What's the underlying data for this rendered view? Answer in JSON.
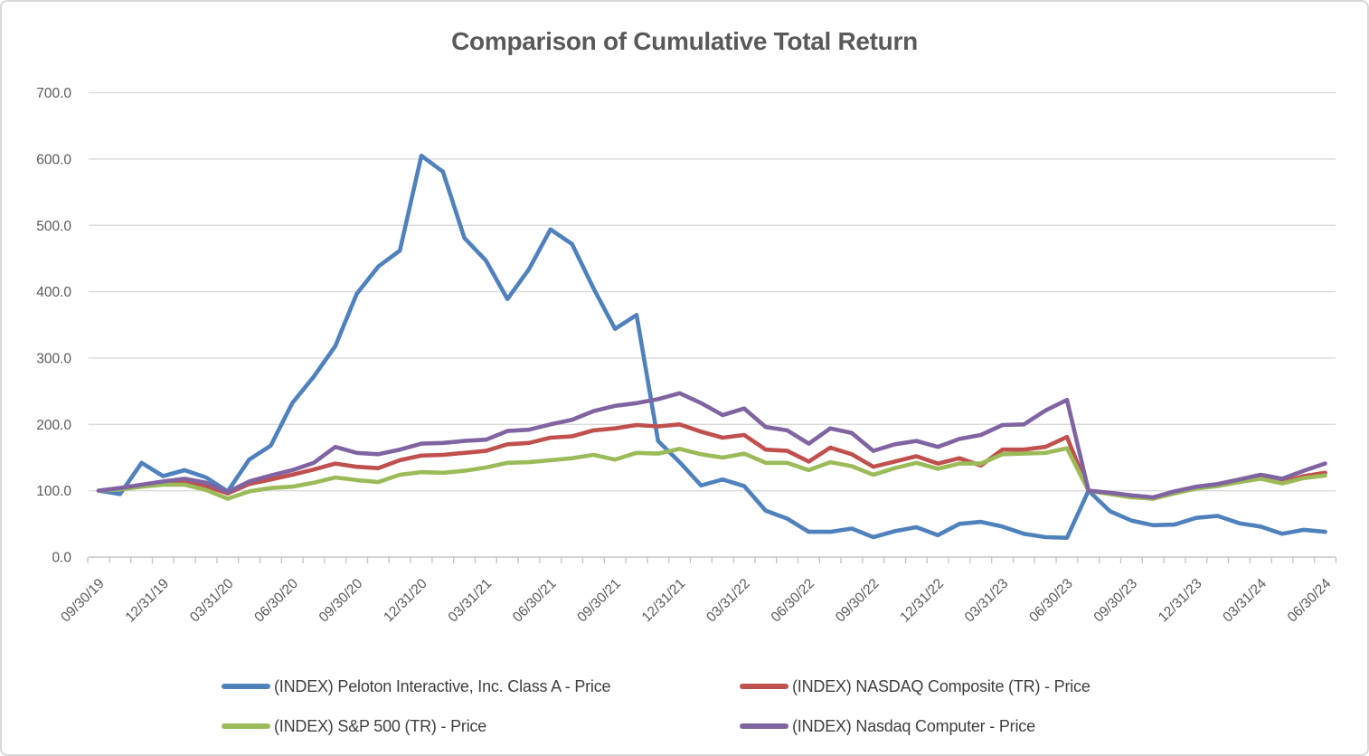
{
  "title": "Comparison of Cumulative Total Return",
  "chart_data": {
    "type": "line",
    "title": "Comparison of Cumulative Total Return",
    "grid": true,
    "legend_position": "bottom",
    "x_label_every": 3,
    "y_axis": {
      "min": 0,
      "max": 700,
      "step": 100
    },
    "y_tick_labels": [
      "0.0",
      "100.0",
      "200.0",
      "300.0",
      "400.0",
      "500.0",
      "600.0",
      "700.0"
    ],
    "x": [
      "09/30/19",
      "10/31/19",
      "11/30/19",
      "12/31/19",
      "01/31/20",
      "02/29/20",
      "03/31/20",
      "04/30/20",
      "05/31/20",
      "06/30/20",
      "07/31/20",
      "08/31/20",
      "09/30/20",
      "10/31/20",
      "11/30/20",
      "12/31/20",
      "01/31/21",
      "02/28/21",
      "03/31/21",
      "04/30/21",
      "05/31/21",
      "06/30/21",
      "07/31/21",
      "08/31/21",
      "09/30/21",
      "10/31/21",
      "11/30/21",
      "12/31/21",
      "01/31/22",
      "02/28/22",
      "03/31/22",
      "04/30/22",
      "05/31/22",
      "06/30/22",
      "07/31/22",
      "08/31/22",
      "09/30/22",
      "10/31/22",
      "11/30/22",
      "12/31/22",
      "01/31/23",
      "02/28/23",
      "03/31/23",
      "04/30/23",
      "05/31/23",
      "06/30/23",
      "07/31/23",
      "08/31/23",
      "09/30/23",
      "10/31/23",
      "11/30/23",
      "12/31/23",
      "01/31/24",
      "02/29/24",
      "03/31/24",
      "04/30/24",
      "05/31/24",
      "06/30/24"
    ],
    "series": [
      {
        "name": "(INDEX) Peloton Interactive, Inc. Class A - Price",
        "color": "#4F81BD",
        "values": [
          100,
          95,
          142,
          122,
          131,
          120,
          99,
          147,
          168,
          232,
          272,
          318,
          397,
          438,
          462,
          605,
          581,
          481,
          447,
          389,
          434,
          494,
          472,
          405,
          344,
          365,
          175,
          143,
          108,
          117,
          107,
          70,
          58,
          38,
          38,
          43,
          30,
          39,
          45,
          33,
          50,
          53,
          46,
          35,
          30,
          29,
          100,
          69,
          55,
          48,
          49,
          59,
          62,
          51,
          46,
          35,
          41,
          38
        ]
      },
      {
        "name": "(INDEX) NASDAQ Composite (TR) - Price",
        "color": "#C0504D",
        "values": [
          100,
          104,
          108,
          112,
          114,
          107,
          96,
          110,
          117,
          124,
          132,
          141,
          136,
          134,
          146,
          153,
          154,
          157,
          160,
          170,
          172,
          180,
          182,
          191,
          194,
          199,
          197,
          200,
          189,
          180,
          184,
          162,
          160,
          144,
          165,
          155,
          136,
          144,
          152,
          141,
          149,
          138,
          162,
          162,
          166,
          181,
          100,
          96,
          91,
          88,
          97,
          104,
          108,
          114,
          120,
          113,
          122,
          127
        ]
      },
      {
        "name": "(INDEX) S&P 500 (TR) - Price",
        "color": "#9BBB59",
        "values": [
          100,
          102,
          106,
          109,
          109,
          101,
          88,
          99,
          104,
          106,
          112,
          120,
          116,
          113,
          124,
          128,
          127,
          130,
          135,
          142,
          143,
          146,
          149,
          154,
          147,
          157,
          156,
          163,
          155,
          150,
          156,
          142,
          142,
          131,
          143,
          137,
          124,
          134,
          142,
          133,
          141,
          141,
          155,
          156,
          157,
          164,
          100,
          95,
          90,
          88,
          96,
          103,
          107,
          113,
          118,
          111,
          119,
          123
        ]
      },
      {
        "name": "(INDEX) Nasdaq Computer - Price",
        "color": "#8064A2",
        "values": [
          100,
          104,
          109,
          114,
          118,
          112,
          98,
          114,
          123,
          131,
          142,
          166,
          157,
          155,
          162,
          171,
          172,
          175,
          177,
          190,
          192,
          200,
          207,
          220,
          228,
          232,
          238,
          247,
          232,
          214,
          224,
          196,
          191,
          171,
          194,
          187,
          160,
          170,
          175,
          166,
          178,
          184,
          199,
          200,
          221,
          237,
          100,
          97,
          93,
          90,
          99,
          106,
          110,
          117,
          124,
          118,
          130,
          141
        ]
      }
    ],
    "colors": {
      "gridline": "#D9D9D9",
      "axis_line": "#C6C6C6",
      "title_text": "#595959",
      "axis_text": "#595959",
      "legend_text": "#3F3F3F"
    }
  }
}
